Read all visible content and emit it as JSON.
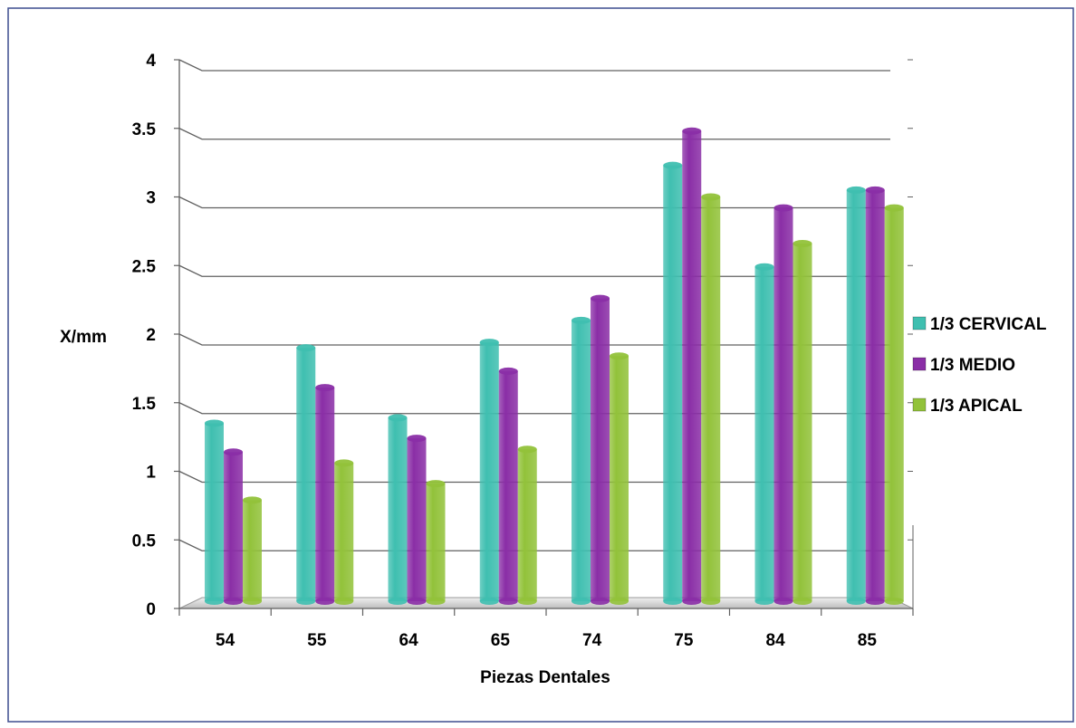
{
  "chart_data": {
    "type": "bar",
    "title": "",
    "xlabel": "Piezas Dentales",
    "ylabel": "X/mm",
    "categories": [
      "54",
      "55",
      "64",
      "65",
      "74",
      "75",
      "84",
      "85"
    ],
    "ylim": [
      0,
      4
    ],
    "yticks": [
      "0",
      "0.5",
      "1",
      "1.5",
      "2",
      "2.5",
      "3",
      "3.5",
      "4"
    ],
    "grid": true,
    "legend_position": "right",
    "series": [
      {
        "name": "1/3 CERVICAL",
        "color": "#3fbfb0",
        "values": [
          1.35,
          1.9,
          1.39,
          1.94,
          2.1,
          3.23,
          2.49,
          3.05
        ]
      },
      {
        "name": "1/3 MEDIO",
        "color": "#8a2ea6",
        "values": [
          1.14,
          1.61,
          1.24,
          1.73,
          2.26,
          3.48,
          2.92,
          3.05
        ]
      },
      {
        "name": "1/3 APICAL",
        "color": "#92c23a",
        "values": [
          0.79,
          1.06,
          0.91,
          1.16,
          1.84,
          3.0,
          2.66,
          2.92
        ]
      }
    ]
  }
}
